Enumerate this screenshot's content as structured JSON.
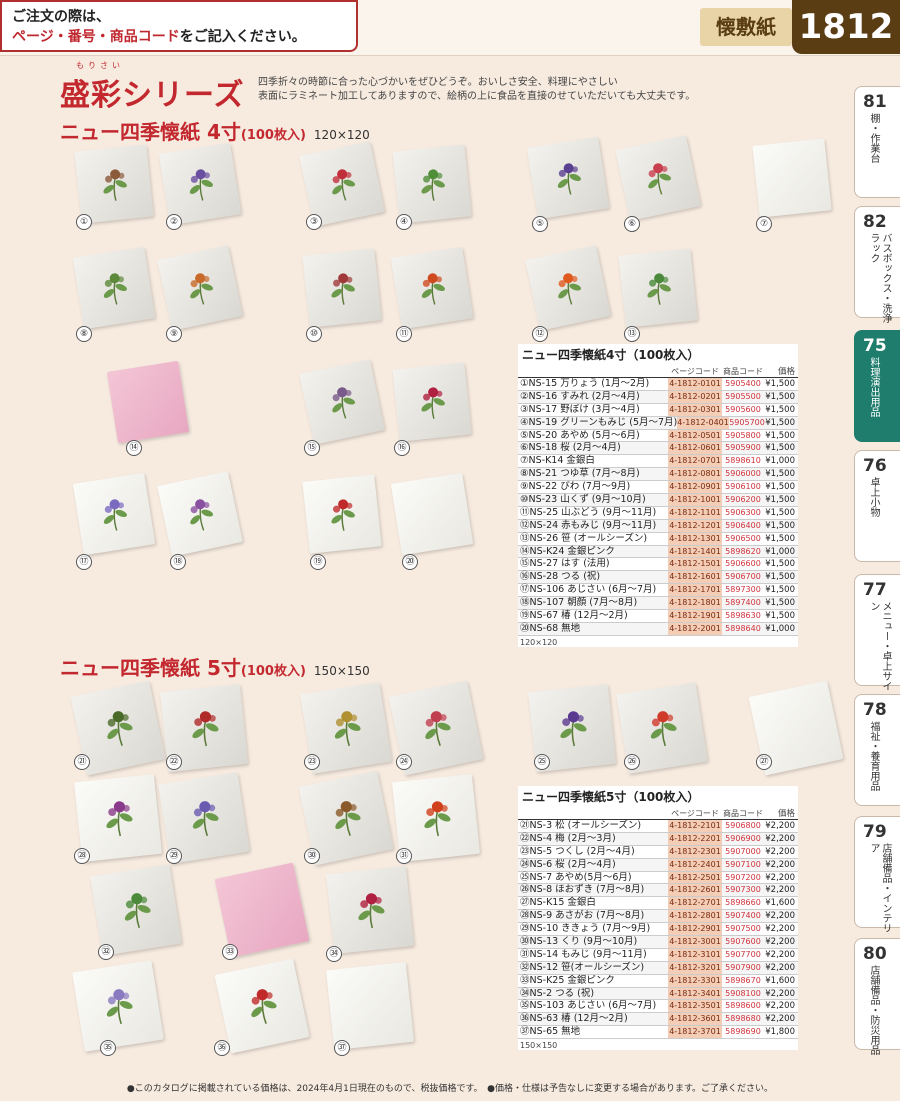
{
  "header": {
    "notice_line1": "ご注文の際は、",
    "notice_line2_red": "ページ・番号・商品コード",
    "notice_line2_rest": "をご記入ください。",
    "category": "懐敷紙",
    "page_number": "1812"
  },
  "series": {
    "ruby": "もりさい",
    "title": "盛彩シリーズ",
    "desc_line1": "四季折々の時節に合った心づかいをぜひどうぞ。おいしさ安全、料理にやさしい",
    "desc_line2": "表面にラミネート加工してありますので、絵柄の上に食品を直接のせていただいても大丈夫です。"
  },
  "section4": {
    "title": "ニュー四季懐紙 4寸",
    "count": "(100枚入)",
    "size": "120×120"
  },
  "section5": {
    "title": "ニュー四季懐紙 5寸",
    "count": "(100枚入)",
    "size": "150×150"
  },
  "table4": {
    "title": "ニュー四季懐紙4寸（100枚入）",
    "col_page": "ページコード",
    "col_code": "商品コード",
    "col_price": "価格",
    "note": "120×120",
    "rows": [
      {
        "name": "①NS-15 万りょう (1月～2月)",
        "page": "4-1812-0101",
        "code": "5905400",
        "price": "¥1,500"
      },
      {
        "name": "②NS-16 すみれ (2月～4月)",
        "page": "4-1812-0201",
        "code": "5905500",
        "price": "¥1,500"
      },
      {
        "name": "③NS-17 野ぼけ (3月～4月)",
        "page": "4-1812-0301",
        "code": "5905600",
        "price": "¥1,500"
      },
      {
        "name": "④NS-19 グリーンもみじ (5月～7月)",
        "page": "4-1812-0401",
        "code": "5905700",
        "price": "¥1,500"
      },
      {
        "name": "⑤NS-20 あやめ (5月～6月)",
        "page": "4-1812-0501",
        "code": "5905800",
        "price": "¥1,500"
      },
      {
        "name": "⑥NS-18 桜 (2月～4月)",
        "page": "4-1812-0601",
        "code": "5905900",
        "price": "¥1,500"
      },
      {
        "name": "⑦NS-K14 金銀白",
        "page": "4-1812-0701",
        "code": "5898610",
        "price": "¥1,000"
      },
      {
        "name": "⑧NS-21 つゆ草 (7月～8月)",
        "page": "4-1812-0801",
        "code": "5906000",
        "price": "¥1,500"
      },
      {
        "name": "⑨NS-22 びわ (7月～9月)",
        "page": "4-1812-0901",
        "code": "5906100",
        "price": "¥1,500"
      },
      {
        "name": "⑩NS-23 山くず (9月～10月)",
        "page": "4-1812-1001",
        "code": "5906200",
        "price": "¥1,500"
      },
      {
        "name": "⑪NS-25 山ぶどう (9月～11月)",
        "page": "4-1812-1101",
        "code": "5906300",
        "price": "¥1,500"
      },
      {
        "name": "⑫NS-24 赤もみじ (9月～11月)",
        "page": "4-1812-1201",
        "code": "5906400",
        "price": "¥1,500"
      },
      {
        "name": "⑬NS-26 笹 (オールシーズン)",
        "page": "4-1812-1301",
        "code": "5906500",
        "price": "¥1,500"
      },
      {
        "name": "⑭NS-K24 金銀ピンク",
        "page": "4-1812-1401",
        "code": "5898620",
        "price": "¥1,000"
      },
      {
        "name": "⑮NS-27 はす (法用)",
        "page": "4-1812-1501",
        "code": "5906600",
        "price": "¥1,500"
      },
      {
        "name": "⑯NS-28 つる (祝)",
        "page": "4-1812-1601",
        "code": "5906700",
        "price": "¥1,500"
      },
      {
        "name": "⑰NS-106 あじさい (6月～7月)",
        "page": "4-1812-1701",
        "code": "5897300",
        "price": "¥1,500"
      },
      {
        "name": "⑱NS-107 朝顔 (7月～8月)",
        "page": "4-1812-1801",
        "code": "5897400",
        "price": "¥1,500"
      },
      {
        "name": "⑲NS-67 椿 (12月～2月)",
        "page": "4-1812-1901",
        "code": "5898630",
        "price": "¥1,500"
      },
      {
        "name": "⑳NS-68 無地",
        "page": "4-1812-2001",
        "code": "5898640",
        "price": "¥1,000"
      }
    ]
  },
  "table5": {
    "title": "ニュー四季懐紙5寸（100枚入）",
    "col_page": "ページコード",
    "col_code": "商品コード",
    "col_price": "価格",
    "note": "150×150",
    "rows": [
      {
        "name": "㉑NS-3 松 (オールシーズン)",
        "page": "4-1812-2101",
        "code": "5906800",
        "price": "¥2,200"
      },
      {
        "name": "㉒NS-4 梅 (2月～3月)",
        "page": "4-1812-2201",
        "code": "5906900",
        "price": "¥2,200"
      },
      {
        "name": "㉓NS-5 つくし (2月～4月)",
        "page": "4-1812-2301",
        "code": "5907000",
        "price": "¥2,200"
      },
      {
        "name": "㉔NS-6 桜 (2月～4月)",
        "page": "4-1812-2401",
        "code": "5907100",
        "price": "¥2,200"
      },
      {
        "name": "㉕NS-7 あやめ(5月～6月)",
        "page": "4-1812-2501",
        "code": "5907200",
        "price": "¥2,200"
      },
      {
        "name": "㉖NS-8 ほおずき (7月～8月)",
        "page": "4-1812-2601",
        "code": "5907300",
        "price": "¥2,200"
      },
      {
        "name": "㉗NS-K15 金銀白",
        "page": "4-1812-2701",
        "code": "5898660",
        "price": "¥1,600"
      },
      {
        "name": "㉘NS-9 あさがお (7月～8月)",
        "page": "4-1812-2801",
        "code": "5907400",
        "price": "¥2,200"
      },
      {
        "name": "㉙NS-10 ききょう (7月～9月)",
        "page": "4-1812-2901",
        "code": "5907500",
        "price": "¥2,200"
      },
      {
        "name": "㉚NS-13 くり (9月～10月)",
        "page": "4-1812-3001",
        "code": "5907600",
        "price": "¥2,200"
      },
      {
        "name": "㉛NS-14 もみじ (9月～11月)",
        "page": "4-1812-3101",
        "code": "5907700",
        "price": "¥2,200"
      },
      {
        "name": "㉜NS-12 笹(オールシーズン)",
        "page": "4-1812-3201",
        "code": "5907900",
        "price": "¥2,200"
      },
      {
        "name": "㉝NS-K25 金銀ピンク",
        "page": "4-1812-3301",
        "code": "5898670",
        "price": "¥1,600"
      },
      {
        "name": "㉞NS-2 つる (祝)",
        "page": "4-1812-3401",
        "code": "5908100",
        "price": "¥2,200"
      },
      {
        "name": "㉟NS-103 あじさい (6月～7月)",
        "page": "4-1812-3501",
        "code": "5898600",
        "price": "¥2,200"
      },
      {
        "name": "㊱NS-63 椿 (12月～2月)",
        "page": "4-1812-3601",
        "code": "5898680",
        "price": "¥2,200"
      },
      {
        "name": "㊲NS-65 無地",
        "page": "4-1812-3701",
        "code": "5898690",
        "price": "¥1,800"
      }
    ]
  },
  "tabs": [
    {
      "num": "81",
      "label": "棚・作業台"
    },
    {
      "num": "82",
      "label": "バスボックス・洗浄ラック"
    },
    {
      "num": "75",
      "label": "料理演出用品"
    },
    {
      "num": "76",
      "label": "卓上小物"
    },
    {
      "num": "77",
      "label": "メニュー・卓上サイン"
    },
    {
      "num": "78",
      "label": "福祉・養育用品"
    },
    {
      "num": "79",
      "label": "店舗備品・インテリア"
    },
    {
      "num": "80",
      "label": "店舗備品・防災用品"
    }
  ],
  "footer": "●このカタログに掲載されている価格は、2024年4月1日現在のもので、税抜価格です。　●価格・仕様は予告なしに変更する場合があります。ご了承ください。",
  "item_numbers": [
    "①",
    "②",
    "③",
    "④",
    "⑤",
    "⑥",
    "⑦",
    "⑧",
    "⑨",
    "⑩",
    "⑪",
    "⑫",
    "⑬",
    "⑭",
    "⑮",
    "⑯",
    "⑰",
    "⑱",
    "⑲",
    "⑳",
    "㉑",
    "㉒",
    "㉓",
    "㉔",
    "㉕",
    "㉖",
    "㉗",
    "㉘",
    "㉙",
    "㉚",
    "㉛",
    "㉜",
    "㉝",
    "㉞",
    "㉟",
    "㊱",
    "㊲"
  ],
  "colors": {
    "accent_red": "#c3282f",
    "brown": "#5b3d14",
    "tab_active": "#1f7d6d"
  }
}
